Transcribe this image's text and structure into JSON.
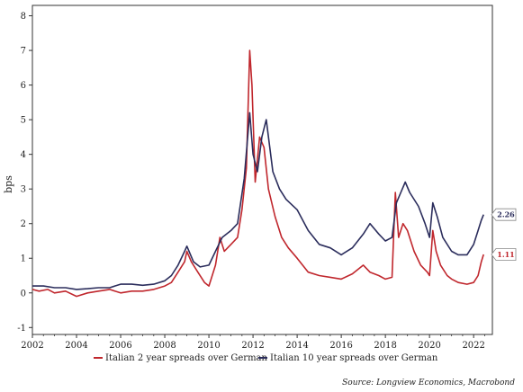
{
  "chart_data": {
    "type": "line",
    "ylabel": "bps",
    "xlabel": "",
    "ylim": [
      -1.2,
      8.3
    ],
    "xlim": [
      2002,
      2022.85
    ],
    "x_ticks": [
      2002,
      2004,
      2006,
      2008,
      2010,
      2012,
      2014,
      2016,
      2018,
      2020,
      2022
    ],
    "x_tick_labels": [
      "2002",
      "2004",
      "2006",
      "2008",
      "2010",
      "2012",
      "2014",
      "2016",
      "2018",
      "2020",
      "2022"
    ],
    "y_ticks": [
      -1,
      0,
      1,
      2,
      3,
      4,
      5,
      6,
      7,
      8
    ],
    "y_tick_labels": [
      "-1",
      "0",
      "1",
      "2",
      "3",
      "4",
      "5",
      "6",
      "7",
      "8"
    ],
    "grid": false,
    "legend_position": "bottom",
    "source": "Source: Longview Economics, Macrobond",
    "series": [
      {
        "name": "Italian 2 year spreads over German",
        "color": "#c0272d",
        "end_label": "1.11",
        "points": [
          [
            2002.0,
            0.1
          ],
          [
            2002.3,
            0.05
          ],
          [
            2002.7,
            0.1
          ],
          [
            2003.0,
            0.0
          ],
          [
            2003.5,
            0.05
          ],
          [
            2004.0,
            -0.1
          ],
          [
            2004.5,
            0.0
          ],
          [
            2005.0,
            0.05
          ],
          [
            2005.5,
            0.1
          ],
          [
            2006.0,
            0.0
          ],
          [
            2006.5,
            0.05
          ],
          [
            2007.0,
            0.05
          ],
          [
            2007.5,
            0.1
          ],
          [
            2008.0,
            0.2
          ],
          [
            2008.3,
            0.3
          ],
          [
            2008.6,
            0.6
          ],
          [
            2008.9,
            0.9
          ],
          [
            2009.0,
            1.2
          ],
          [
            2009.2,
            0.9
          ],
          [
            2009.5,
            0.6
          ],
          [
            2009.8,
            0.3
          ],
          [
            2010.0,
            0.2
          ],
          [
            2010.3,
            0.8
          ],
          [
            2010.5,
            1.6
          ],
          [
            2010.7,
            1.2
          ],
          [
            2011.0,
            1.4
          ],
          [
            2011.3,
            1.6
          ],
          [
            2011.5,
            2.4
          ],
          [
            2011.7,
            3.6
          ],
          [
            2011.85,
            7.0
          ],
          [
            2011.95,
            6.0
          ],
          [
            2012.1,
            3.2
          ],
          [
            2012.3,
            4.5
          ],
          [
            2012.5,
            4.2
          ],
          [
            2012.7,
            3.0
          ],
          [
            2013.0,
            2.2
          ],
          [
            2013.3,
            1.6
          ],
          [
            2013.6,
            1.3
          ],
          [
            2014.0,
            1.0
          ],
          [
            2014.5,
            0.6
          ],
          [
            2015.0,
            0.5
          ],
          [
            2015.5,
            0.45
          ],
          [
            2016.0,
            0.4
          ],
          [
            2016.5,
            0.55
          ],
          [
            2017.0,
            0.8
          ],
          [
            2017.3,
            0.6
          ],
          [
            2017.7,
            0.5
          ],
          [
            2018.0,
            0.4
          ],
          [
            2018.3,
            0.45
          ],
          [
            2018.45,
            2.9
          ],
          [
            2018.6,
            1.6
          ],
          [
            2018.8,
            2.0
          ],
          [
            2019.0,
            1.8
          ],
          [
            2019.3,
            1.2
          ],
          [
            2019.6,
            0.8
          ],
          [
            2019.9,
            0.6
          ],
          [
            2020.0,
            0.5
          ],
          [
            2020.15,
            1.8
          ],
          [
            2020.3,
            1.2
          ],
          [
            2020.5,
            0.8
          ],
          [
            2020.8,
            0.5
          ],
          [
            2021.0,
            0.4
          ],
          [
            2021.3,
            0.3
          ],
          [
            2021.7,
            0.25
          ],
          [
            2022.0,
            0.3
          ],
          [
            2022.2,
            0.5
          ],
          [
            2022.35,
            0.9
          ],
          [
            2022.45,
            1.11
          ]
        ]
      },
      {
        "name": "Italian 10 year spreads over German",
        "color": "#2b2d5c",
        "end_label": "2.26",
        "points": [
          [
            2002.0,
            0.2
          ],
          [
            2002.5,
            0.2
          ],
          [
            2003.0,
            0.15
          ],
          [
            2003.5,
            0.15
          ],
          [
            2004.0,
            0.1
          ],
          [
            2004.5,
            0.12
          ],
          [
            2005.0,
            0.15
          ],
          [
            2005.5,
            0.15
          ],
          [
            2006.0,
            0.25
          ],
          [
            2006.5,
            0.25
          ],
          [
            2007.0,
            0.22
          ],
          [
            2007.5,
            0.25
          ],
          [
            2008.0,
            0.35
          ],
          [
            2008.3,
            0.5
          ],
          [
            2008.6,
            0.8
          ],
          [
            2008.9,
            1.2
          ],
          [
            2009.0,
            1.35
          ],
          [
            2009.3,
            0.9
          ],
          [
            2009.6,
            0.75
          ],
          [
            2010.0,
            0.8
          ],
          [
            2010.3,
            1.2
          ],
          [
            2010.6,
            1.6
          ],
          [
            2011.0,
            1.8
          ],
          [
            2011.3,
            2.0
          ],
          [
            2011.6,
            3.3
          ],
          [
            2011.85,
            5.2
          ],
          [
            2012.0,
            4.0
          ],
          [
            2012.2,
            3.5
          ],
          [
            2012.4,
            4.5
          ],
          [
            2012.6,
            5.0
          ],
          [
            2012.9,
            3.5
          ],
          [
            2013.2,
            3.0
          ],
          [
            2013.5,
            2.7
          ],
          [
            2014.0,
            2.4
          ],
          [
            2014.5,
            1.8
          ],
          [
            2015.0,
            1.4
          ],
          [
            2015.5,
            1.3
          ],
          [
            2016.0,
            1.1
          ],
          [
            2016.5,
            1.3
          ],
          [
            2017.0,
            1.7
          ],
          [
            2017.3,
            2.0
          ],
          [
            2017.7,
            1.7
          ],
          [
            2018.0,
            1.5
          ],
          [
            2018.3,
            1.6
          ],
          [
            2018.5,
            2.6
          ],
          [
            2018.7,
            2.9
          ],
          [
            2018.9,
            3.2
          ],
          [
            2019.1,
            2.9
          ],
          [
            2019.5,
            2.5
          ],
          [
            2019.8,
            2.0
          ],
          [
            2020.0,
            1.6
          ],
          [
            2020.15,
            2.6
          ],
          [
            2020.35,
            2.2
          ],
          [
            2020.6,
            1.6
          ],
          [
            2021.0,
            1.2
          ],
          [
            2021.3,
            1.1
          ],
          [
            2021.7,
            1.1
          ],
          [
            2022.0,
            1.4
          ],
          [
            2022.2,
            1.8
          ],
          [
            2022.35,
            2.1
          ],
          [
            2022.45,
            2.26
          ]
        ]
      }
    ]
  }
}
